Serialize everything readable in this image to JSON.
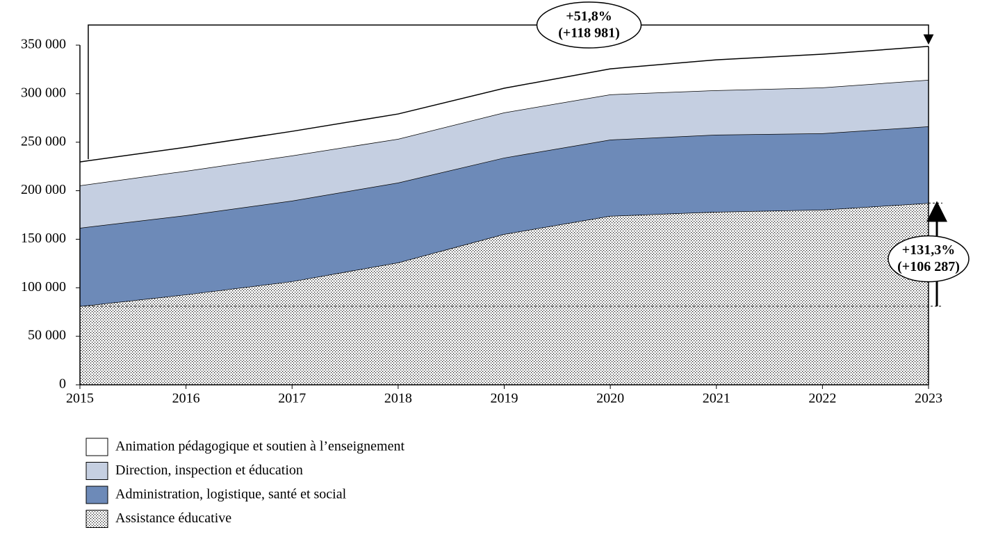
{
  "chart_data": {
    "type": "stacked-area",
    "x": [
      2015,
      2016,
      2017,
      2018,
      2019,
      2020,
      2021,
      2022,
      2023
    ],
    "xlim": [
      2015,
      2023
    ],
    "ylim": [
      0,
      350000
    ],
    "yticks": [
      0,
      {
        "value": 50000,
        "label": "50 000"
      },
      {
        "value": 100000,
        "label": "100 000"
      },
      {
        "value": 150000,
        "label": "150 000"
      },
      {
        "value": 200000,
        "label": "200 000"
      },
      {
        "value": 250000,
        "label": "250 000"
      },
      {
        "value": 300000,
        "label": "300 000"
      },
      {
        "value": 350000,
        "label": "350 000"
      }
    ],
    "legend": "bottom-left",
    "series": [
      {
        "name": "Animation pédagogique et soutien à l’enseignement",
        "color": "#ffffff",
        "values": [
          24300,
          24400,
          25000,
          25700,
          25000,
          26400,
          31400,
          34400,
          34474
        ]
      },
      {
        "name": "Direction, inspection et éducation",
        "color": "#c5cfe1",
        "values": [
          43700,
          45800,
          46500,
          45100,
          46600,
          46600,
          45800,
          47200,
          48000
        ]
      },
      {
        "name": "Administration, logistique, santé et social",
        "color": "#6d8ab8",
        "values": [
          80750,
          81600,
          83100,
          82300,
          78700,
          78600,
          79500,
          78700,
          79000
        ]
      },
      {
        "name": "Assistance éducative",
        "color": "#ffffff",
        "pattern": "dots",
        "values": [
          80950,
          93000,
          106600,
          126000,
          155300,
          174000,
          178200,
          180400,
          187237
        ]
      }
    ],
    "annotations": [
      {
        "lines": [
          "+51,8%",
          "(+118 981)"
        ]
      },
      {
        "lines": [
          "+131,3%",
          "(+106 287)"
        ]
      }
    ]
  }
}
